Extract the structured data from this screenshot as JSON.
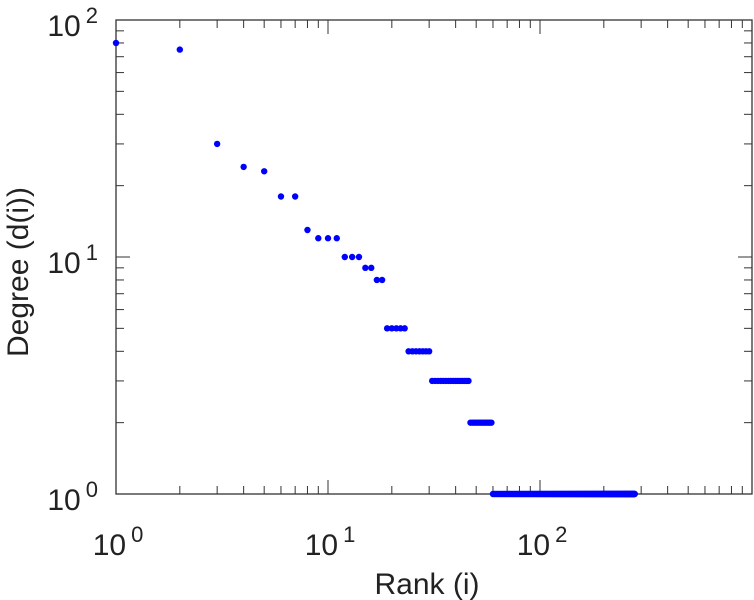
{
  "chart_data": {
    "type": "scatter",
    "title": "",
    "xlabel": "Rank (i)",
    "ylabel": "Degree (d(i))",
    "x_scale": "log",
    "y_scale": "log",
    "xlim": [
      1,
      1000
    ],
    "ylim": [
      1,
      100
    ],
    "x_ticks": [
      {
        "base": "10",
        "exp": "0"
      },
      {
        "base": "10",
        "exp": "1"
      },
      {
        "base": "10",
        "exp": "2"
      }
    ],
    "y_ticks": [
      {
        "base": "10",
        "exp": "0"
      },
      {
        "base": "10",
        "exp": "1"
      },
      {
        "base": "10",
        "exp": "2"
      }
    ],
    "grid": false,
    "marker_color": "#0000ff",
    "points": [
      {
        "x": 1,
        "y": 80
      },
      {
        "x": 2,
        "y": 75
      },
      {
        "x": 3,
        "y": 30
      },
      {
        "x": 4,
        "y": 24
      },
      {
        "x": 5,
        "y": 23
      },
      {
        "x": 6,
        "y": 18
      },
      {
        "x": 7,
        "y": 18
      },
      {
        "x": 8,
        "y": 13
      },
      {
        "x": 9,
        "y": 12
      },
      {
        "x": 10,
        "y": 12
      },
      {
        "x": 11,
        "y": 12
      },
      {
        "x": 12,
        "y": 10
      },
      {
        "x": 13,
        "y": 10
      },
      {
        "x": 14,
        "y": 10
      },
      {
        "x": 15,
        "y": 9
      },
      {
        "x": 16,
        "y": 9
      },
      {
        "x": 17,
        "y": 8
      },
      {
        "x": 18,
        "y": 8
      }
    ],
    "runs": [
      {
        "y": 5,
        "x_from": 19,
        "x_to": 23
      },
      {
        "y": 4,
        "x_from": 24,
        "x_to": 30
      },
      {
        "y": 3,
        "x_from": 31,
        "x_to": 46
      },
      {
        "y": 2,
        "x_from": 47,
        "x_to": 59
      },
      {
        "y": 1,
        "x_from": 60,
        "x_to": 280
      }
    ]
  }
}
